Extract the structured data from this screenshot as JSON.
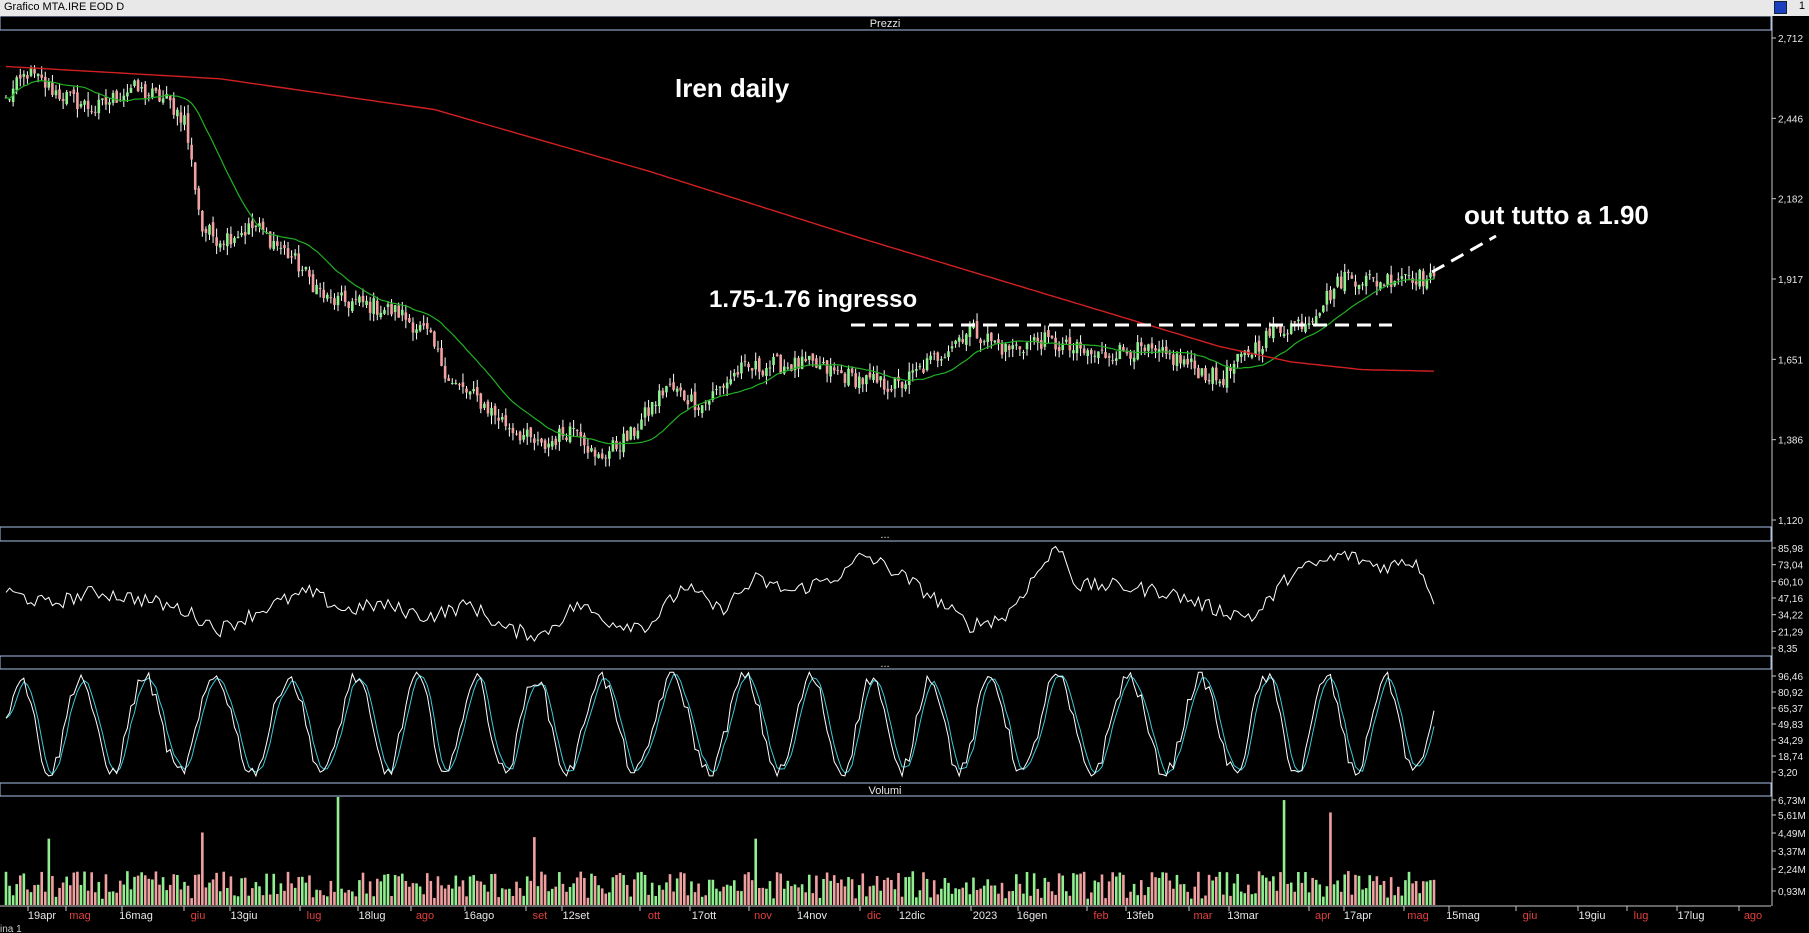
{
  "window": {
    "title": "Grafico MTA.IRE EOD D",
    "corner_label": "1"
  },
  "panels": {
    "price_header": "Prezzi",
    "rsi_header": "...",
    "stoch_header": "...",
    "volume_header": "Volumi"
  },
  "annotations": {
    "title": "Iren daily",
    "entry": "1.75-1.76 ingresso",
    "exit": "out tutto a 1.90"
  },
  "footer": {
    "tab": "ina 1"
  },
  "colors": {
    "background": "#000000",
    "candle_up": "#8ef08e",
    "candle_down": "#f2a0a0",
    "ma_short": "#22b022",
    "ma_long": "#d02020",
    "oscillator": "#ffffff",
    "stoch_k": "#ffffff",
    "stoch_d": "#3cc8d8",
    "volume_up": "#90f090",
    "volume_down": "#f0a0a0",
    "panel_border": "#a8c0e8"
  },
  "chart_data": [
    {
      "type": "candlestick",
      "panel": "Prezzi",
      "y_ticks": [
        "2,712",
        "2,446",
        "2,182",
        "1,917",
        "1,651",
        "1,386",
        "1,120"
      ],
      "ylim": [
        1.12,
        2.712
      ],
      "x_labels": [
        "19apr",
        "mag",
        "16mag",
        "giu",
        "13giu",
        "lug",
        "18lug",
        "ago",
        "16ago",
        "set",
        "12set",
        "ott",
        "17ott",
        "nov",
        "14nov",
        "dic",
        "12dic",
        "2023",
        "16gen",
        "feb",
        "13feb",
        "mar",
        "13mar",
        "apr",
        "17apr",
        "mag",
        "15mag",
        "giu",
        "19giu",
        "lug",
        "17lug",
        "ago"
      ],
      "close_anchors": [
        [
          0,
          2.49
        ],
        [
          6,
          2.58
        ],
        [
          15,
          2.51
        ],
        [
          25,
          2.46
        ],
        [
          35,
          2.53
        ],
        [
          45,
          2.49
        ],
        [
          50,
          2.43
        ],
        [
          55,
          2.07
        ],
        [
          60,
          2.04
        ],
        [
          70,
          2.08
        ],
        [
          80,
          1.98
        ],
        [
          90,
          1.84
        ],
        [
          100,
          1.83
        ],
        [
          110,
          1.8
        ],
        [
          118,
          1.73
        ],
        [
          125,
          1.57
        ],
        [
          132,
          1.52
        ],
        [
          140,
          1.44
        ],
        [
          150,
          1.36
        ],
        [
          160,
          1.44
        ],
        [
          165,
          1.32
        ],
        [
          175,
          1.4
        ],
        [
          185,
          1.56
        ],
        [
          195,
          1.5
        ],
        [
          205,
          1.61
        ],
        [
          215,
          1.63
        ],
        [
          225,
          1.63
        ],
        [
          240,
          1.58
        ],
        [
          250,
          1.56
        ],
        [
          260,
          1.65
        ],
        [
          270,
          1.75
        ],
        [
          280,
          1.68
        ],
        [
          290,
          1.71
        ],
        [
          305,
          1.66
        ],
        [
          315,
          1.68
        ],
        [
          328,
          1.65
        ],
        [
          340,
          1.58
        ],
        [
          347,
          1.66
        ],
        [
          355,
          1.74
        ],
        [
          365,
          1.78
        ],
        [
          375,
          1.92
        ],
        [
          385,
          1.9
        ],
        [
          392,
          1.93
        ],
        [
          400,
          1.9
        ]
      ],
      "ma_short_name": "",
      "ma_long_name": "",
      "entry_level": 1.76,
      "exit_level": 1.9
    },
    {
      "type": "line",
      "panel": "oscillator",
      "y_ticks": [
        "85,98",
        "73,04",
        "60,10",
        "47,16",
        "34,22",
        "21,29",
        "8,35"
      ],
      "ylim": [
        8.35,
        95
      ],
      "anchors": [
        [
          0,
          55
        ],
        [
          12,
          45
        ],
        [
          25,
          55
        ],
        [
          40,
          48
        ],
        [
          50,
          40
        ],
        [
          60,
          25
        ],
        [
          75,
          45
        ],
        [
          85,
          55
        ],
        [
          95,
          40
        ],
        [
          105,
          45
        ],
        [
          118,
          35
        ],
        [
          130,
          45
        ],
        [
          140,
          25
        ],
        [
          150,
          20
        ],
        [
          160,
          45
        ],
        [
          170,
          30
        ],
        [
          180,
          28
        ],
        [
          190,
          60
        ],
        [
          200,
          40
        ],
        [
          210,
          65
        ],
        [
          220,
          55
        ],
        [
          235,
          70
        ],
        [
          240,
          85
        ],
        [
          250,
          70
        ],
        [
          260,
          50
        ],
        [
          270,
          28
        ],
        [
          280,
          35
        ],
        [
          290,
          75
        ],
        [
          295,
          92
        ],
        [
          300,
          60
        ],
        [
          310,
          60
        ],
        [
          325,
          55
        ],
        [
          340,
          40
        ],
        [
          350,
          35
        ],
        [
          360,
          70
        ],
        [
          375,
          85
        ],
        [
          385,
          75
        ],
        [
          395,
          80
        ],
        [
          400,
          50
        ]
      ]
    },
    {
      "type": "line",
      "panel": "stochastic",
      "y_ticks": [
        "96,46",
        "80,92",
        "65,37",
        "49,83",
        "34,29",
        "18,74",
        "3,20"
      ],
      "ylim": [
        3.2,
        98
      ],
      "cycles": 22
    },
    {
      "type": "bar",
      "panel": "Volumi",
      "y_ticks": [
        "6,73M",
        "5,61M",
        "4,49M",
        "3,37M",
        "2,24M",
        "0,93M"
      ],
      "ylim": [
        0,
        7.0
      ],
      "peaks": [
        [
          12,
          4.3
        ],
        [
          55,
          4.7
        ],
        [
          93,
          7.0
        ],
        [
          148,
          4.4
        ],
        [
          210,
          4.3
        ],
        [
          358,
          6.8
        ],
        [
          371,
          6.0
        ]
      ]
    }
  ]
}
